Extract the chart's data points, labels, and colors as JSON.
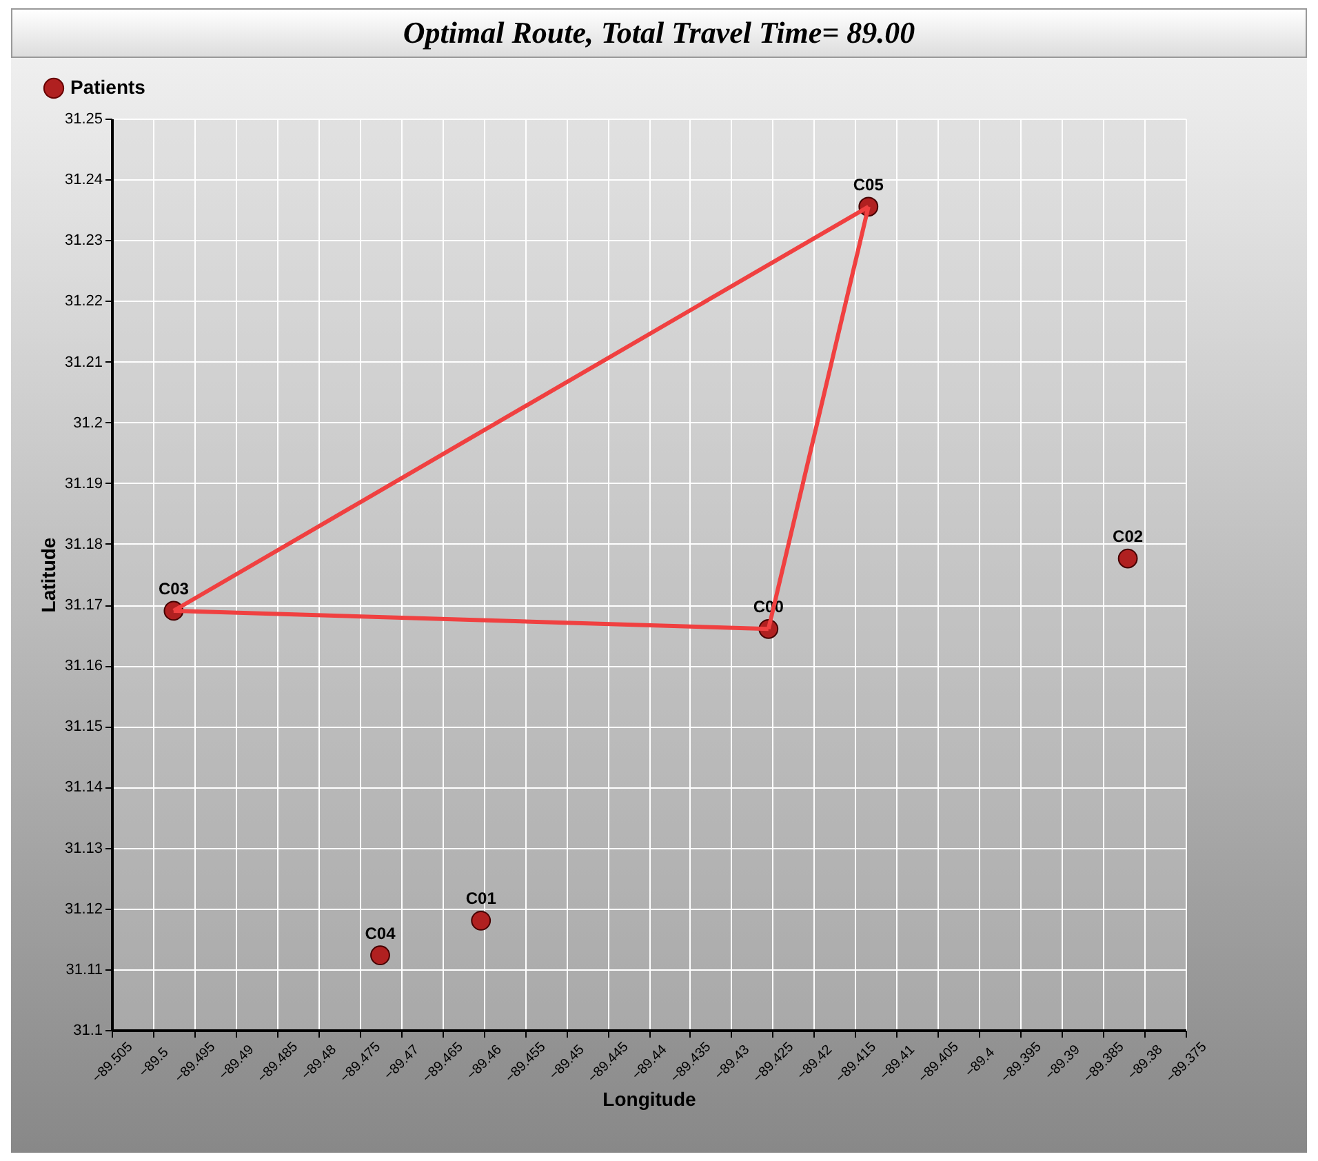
{
  "chart_data": {
    "type": "scatter",
    "title": "Optimal Route, Total Travel Time=    89.00",
    "xlabel": "Longitude",
    "ylabel": "Latitude",
    "series": [
      {
        "name": "Patients",
        "color": "#b02020",
        "x": [
          -89.4255,
          -89.4603,
          -89.382,
          -89.4975,
          -89.4725,
          -89.4134
        ],
        "values": [
          31.166,
          31.118,
          31.1776,
          31.169,
          31.1123,
          31.2355
        ],
        "value_labels": [
          "C00",
          "C01",
          "C02",
          "C03",
          "C04",
          "C05"
        ]
      },
      {
        "type": "line",
        "marker": "none",
        "color": "#f04040",
        "x": [
          -89.4255,
          -89.4134
        ],
        "values": [
          31.166,
          31.2355
        ]
      },
      {
        "type": "line",
        "marker": "none",
        "color": "#f04040",
        "x": [
          -89.4134,
          -89.4975
        ],
        "values": [
          31.2355,
          31.169
        ]
      },
      {
        "type": "line",
        "marker": "none",
        "color": "#f04040",
        "x": [
          -89.4975,
          -89.4255
        ],
        "values": [
          31.169,
          31.166
        ]
      }
    ],
    "xlim": [
      -89.505,
      -89.375
    ],
    "xticks": [
      -89.505,
      -89.5,
      -89.495,
      -89.49,
      -89.485,
      -89.48,
      -89.475,
      -89.47,
      -89.465,
      -89.46,
      -89.455,
      -89.45,
      -89.445,
      -89.44,
      -89.435,
      -89.43,
      -89.425,
      -89.42,
      -89.415,
      -89.41,
      -89.405,
      -89.4,
      -89.395,
      -89.39,
      -89.385,
      -89.38,
      -89.375
    ],
    "ylim": [
      31.1,
      31.25
    ],
    "yticks": [
      31.1,
      31.11,
      31.12,
      31.13,
      31.14,
      31.15,
      31.16,
      31.17,
      31.18,
      31.19,
      31.2,
      31.21,
      31.22,
      31.23,
      31.24,
      31.25
    ],
    "grid": true,
    "legend": "top left",
    "marker": "circle",
    "line_style": "solid"
  }
}
